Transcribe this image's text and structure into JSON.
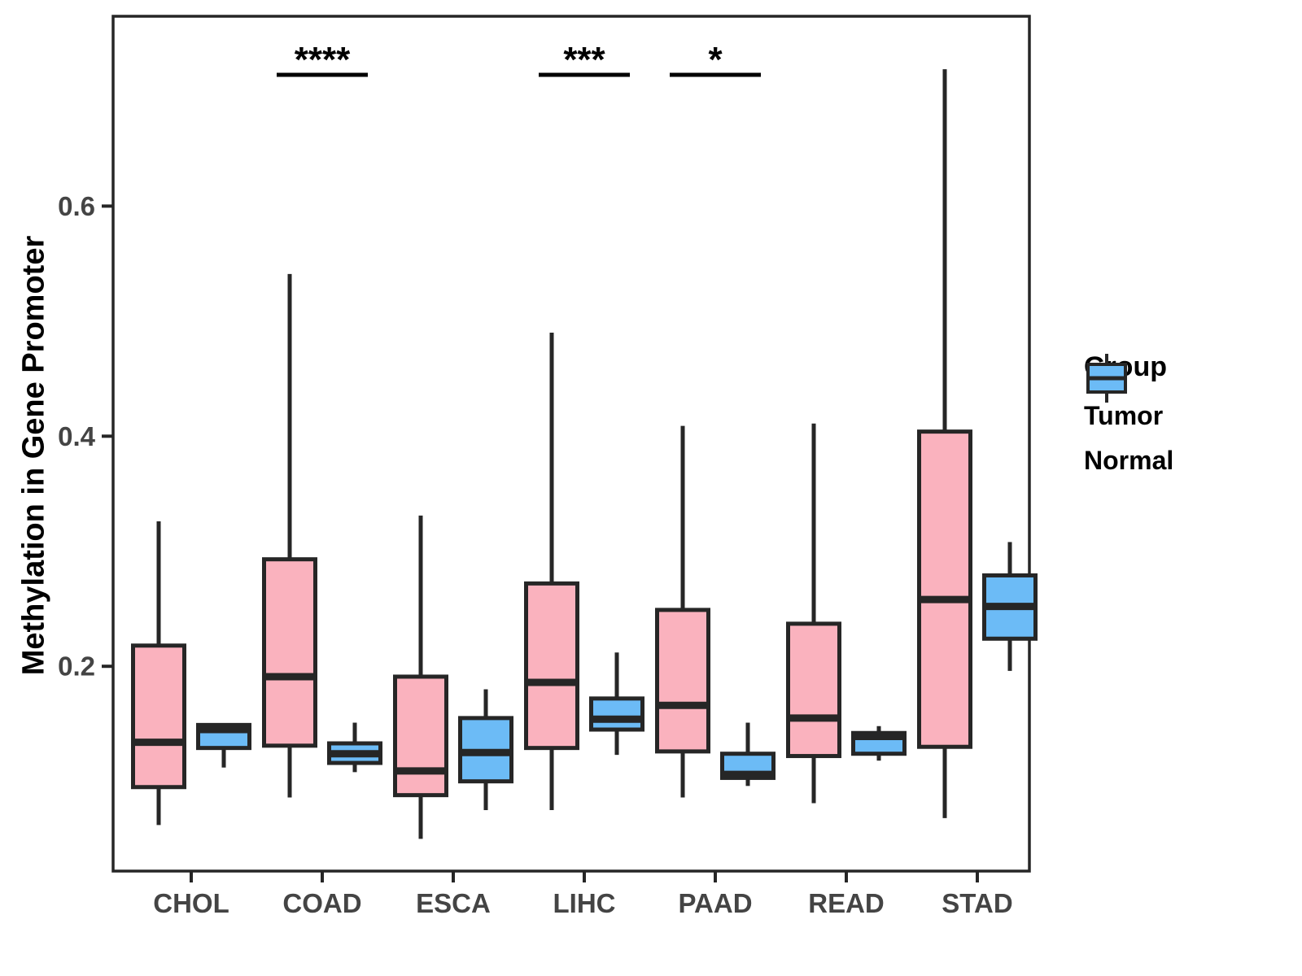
{
  "chart_data": {
    "type": "boxplot",
    "title": "",
    "xlabel": "",
    "ylabel": "Methylation in Gene Promoter",
    "categories": [
      "CHOL",
      "COAD",
      "ESCA",
      "LIHC",
      "PAAD",
      "READ",
      "STAD"
    ],
    "groups": [
      "Tumor",
      "Normal"
    ],
    "yticks": {
      "values": [
        0.2,
        0.4,
        0.6
      ],
      "labels": [
        "0.2",
        "0.4",
        "0.6"
      ]
    },
    "ylim": [
      0.022,
      0.765
    ],
    "grid": "off",
    "legend_position": "right",
    "series": [
      {
        "name": "Tumor",
        "color": "#FAB2BE",
        "boxes": [
          {
            "category": "CHOL",
            "min": 0.062,
            "q1": 0.095,
            "median": 0.134,
            "q3": 0.218,
            "max": 0.326
          },
          {
            "category": "COAD",
            "min": 0.086,
            "q1": 0.131,
            "median": 0.191,
            "q3": 0.293,
            "max": 0.541
          },
          {
            "category": "ESCA",
            "min": 0.05,
            "q1": 0.088,
            "median": 0.109,
            "q3": 0.191,
            "max": 0.331
          },
          {
            "category": "LIHC",
            "min": 0.075,
            "q1": 0.129,
            "median": 0.186,
            "q3": 0.272,
            "max": 0.49
          },
          {
            "category": "PAAD",
            "min": 0.086,
            "q1": 0.126,
            "median": 0.166,
            "q3": 0.249,
            "max": 0.409
          },
          {
            "category": "READ",
            "min": 0.081,
            "q1": 0.122,
            "median": 0.155,
            "q3": 0.237,
            "max": 0.411
          },
          {
            "category": "STAD",
            "min": 0.068,
            "q1": 0.13,
            "median": 0.258,
            "q3": 0.404,
            "max": 0.719
          }
        ]
      },
      {
        "name": "Normal",
        "color": "#6CBBF6",
        "boxes": [
          {
            "category": "CHOL",
            "min": 0.112,
            "q1": 0.129,
            "median": 0.145,
            "q3": 0.149,
            "max": 0.149
          },
          {
            "category": "COAD",
            "min": 0.108,
            "q1": 0.116,
            "median": 0.124,
            "q3": 0.133,
            "max": 0.151
          },
          {
            "category": "ESCA",
            "min": 0.075,
            "q1": 0.1,
            "median": 0.125,
            "q3": 0.155,
            "max": 0.18
          },
          {
            "category": "LIHC",
            "min": 0.123,
            "q1": 0.145,
            "median": 0.154,
            "q3": 0.172,
            "max": 0.212
          },
          {
            "category": "PAAD",
            "min": 0.096,
            "q1": 0.103,
            "median": 0.106,
            "q3": 0.124,
            "max": 0.151
          },
          {
            "category": "READ",
            "min": 0.118,
            "q1": 0.124,
            "median": 0.139,
            "q3": 0.142,
            "max": 0.148
          },
          {
            "category": "STAD",
            "min": 0.196,
            "q1": 0.224,
            "median": 0.252,
            "q3": 0.279,
            "max": 0.308
          }
        ]
      }
    ],
    "significance": [
      {
        "category": "COAD",
        "label": "****"
      },
      {
        "category": "LIHC",
        "label": "***"
      },
      {
        "category": "PAAD",
        "label": "*"
      }
    ]
  },
  "legend": {
    "title": "Group",
    "items": [
      {
        "label": "Tumor",
        "color": "#FAB2BE"
      },
      {
        "label": "Normal",
        "color": "#6CBBF6"
      }
    ]
  },
  "colors": {
    "outline": "#262626",
    "axis_text": "#444444",
    "tumor": "#FAB2BE",
    "normal": "#6CBBF6"
  }
}
